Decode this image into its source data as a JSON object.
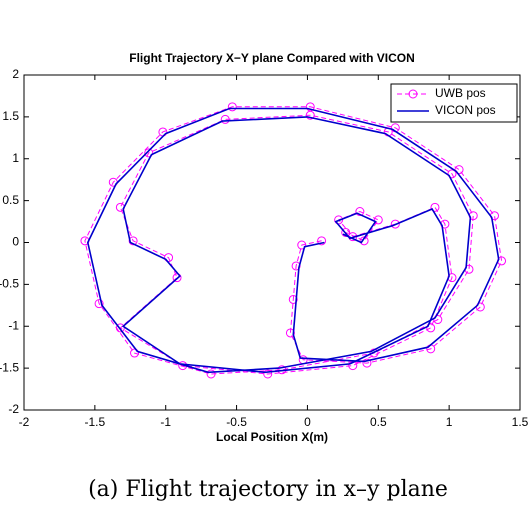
{
  "chart_data": {
    "type": "line",
    "title": "Flight Trajectory X−Y plane Compared with VICON",
    "x_label": "Local Position X(m)",
    "caption": "(a) Flight trajectory in x–y plane",
    "xlim": [
      -2,
      1.5
    ],
    "xticks": [
      -2,
      -1.5,
      -1,
      -0.5,
      0,
      0.5,
      1,
      1.5
    ],
    "ylim": [
      -2,
      2
    ],
    "yticks": [
      -2,
      -1.5,
      -1,
      -0.5,
      0,
      0.5,
      1,
      1.5,
      2
    ],
    "legend": "upper right",
    "series": [
      {
        "name": "UWB pos",
        "color": "#ff00ff",
        "style": "dashed-circle",
        "x": [
          0.1,
          -0.04,
          -0.08,
          -0.1,
          -0.12,
          -0.03,
          0.42,
          0.87,
          1.22,
          1.37,
          1.32,
          1.07,
          0.62,
          0.02,
          -0.53,
          -1.02,
          -1.37,
          -1.57,
          -1.47,
          -1.22,
          -0.68,
          -0.18,
          0.47,
          0.92,
          1.14,
          1.17,
          1.02,
          0.57,
          0.02,
          -0.58,
          -1.12,
          -1.32,
          -1.23,
          -0.98,
          -0.92,
          -1.32,
          -0.88,
          -0.28,
          0.32,
          0.87,
          1.02,
          0.97,
          0.9,
          0.62,
          0.32,
          0.22,
          0.37,
          0.5,
          0.4,
          0.27
        ],
        "values": [
          0.02,
          -0.03,
          -0.28,
          -0.68,
          -1.08,
          -1.4,
          -1.44,
          -1.27,
          -0.77,
          -0.22,
          0.32,
          0.87,
          1.37,
          1.62,
          1.62,
          1.32,
          0.72,
          0.02,
          -0.73,
          -1.32,
          -1.57,
          -1.52,
          -1.32,
          -0.92,
          -0.32,
          0.32,
          0.82,
          1.32,
          1.52,
          1.47,
          1.07,
          0.42,
          0.02,
          -0.18,
          -0.42,
          -1.02,
          -1.47,
          -1.57,
          -1.47,
          -1.02,
          -0.42,
          0.22,
          0.42,
          0.22,
          0.07,
          0.27,
          0.37,
          0.27,
          0.02,
          0.12
        ]
      },
      {
        "name": "VICON pos",
        "color": "#0000cc",
        "style": "solid",
        "x": [
          0.12,
          -0.02,
          -0.06,
          -0.08,
          -0.1,
          -0.05,
          0.4,
          0.85,
          1.2,
          1.35,
          1.3,
          1.05,
          0.6,
          0.0,
          -0.55,
          -1.0,
          -1.35,
          -1.55,
          -1.45,
          -1.2,
          -0.7,
          -0.2,
          0.45,
          0.9,
          1.12,
          1.15,
          1.0,
          0.55,
          0.0,
          -0.6,
          -1.1,
          -1.3,
          -1.25,
          -1.0,
          -0.9,
          -1.3,
          -0.9,
          -0.3,
          0.3,
          0.85,
          1.0,
          0.95,
          0.88,
          0.6,
          0.3,
          0.2,
          0.35,
          0.48,
          0.38,
          0.25
        ],
        "values": [
          0.0,
          -0.05,
          -0.3,
          -0.7,
          -1.1,
          -1.38,
          -1.42,
          -1.25,
          -0.75,
          -0.2,
          0.3,
          0.85,
          1.35,
          1.6,
          1.6,
          1.3,
          0.7,
          0.0,
          -0.75,
          -1.3,
          -1.55,
          -1.5,
          -1.3,
          -0.9,
          -0.3,
          0.3,
          0.8,
          1.3,
          1.5,
          1.45,
          1.05,
          0.4,
          0.0,
          -0.2,
          -0.4,
          -1.0,
          -1.45,
          -1.55,
          -1.45,
          -1.0,
          -0.4,
          0.2,
          0.4,
          0.2,
          0.05,
          0.25,
          0.35,
          0.25,
          0.0,
          0.1
        ]
      }
    ]
  }
}
